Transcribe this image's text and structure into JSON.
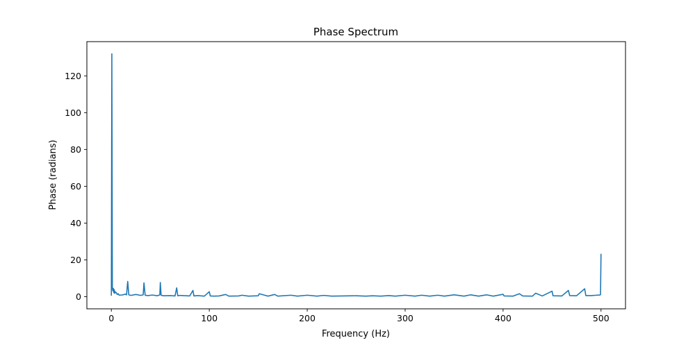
{
  "chart_data": {
    "type": "line",
    "title": "Phase Spectrum",
    "xlabel": "Frequency (Hz)",
    "ylabel": "Phase (radians)",
    "xlim": [
      -25,
      525
    ],
    "ylim": [
      -6.6,
      138.6
    ],
    "xticks": [
      0,
      100,
      200,
      300,
      400,
      500
    ],
    "yticks": [
      0,
      20,
      40,
      60,
      80,
      100,
      120
    ],
    "grid": false,
    "line_color": "#1f77b4",
    "series": [
      {
        "x": [
          0,
          0.5,
          1,
          1.5,
          2,
          2.5,
          3,
          3.5,
          4,
          5,
          6,
          7,
          8,
          10,
          12,
          14,
          15.5,
          16.7,
          17.8,
          20,
          25,
          30,
          32.5,
          33.3,
          34.5,
          37,
          42,
          47,
          49.5,
          50,
          50.8,
          53,
          60,
          65,
          66.7,
          67.8,
          70,
          80,
          83.3,
          84.3,
          88,
          95,
          100,
          101,
          105,
          110,
          116.7,
          120,
          130,
          133.3,
          140,
          150,
          151,
          160,
          166.7,
          170,
          183.3,
          190,
          200,
          210,
          216.7,
          225,
          250,
          260,
          266.7,
          275,
          283.3,
          290,
          300,
          310,
          316.7,
          325,
          333.3,
          340,
          350,
          360,
          366.7,
          375,
          383.3,
          390,
          400,
          401,
          410,
          416.7,
          420,
          430,
          433.3,
          440,
          450,
          451,
          460,
          466.7,
          468,
          475,
          483.3,
          484.5,
          490,
          495,
          499,
          499.5,
          500
        ],
        "y": [
          0.5,
          132,
          5,
          3.2,
          4.5,
          2.2,
          3.8,
          1.8,
          2.6,
          2.2,
          1.2,
          1.6,
          0.8,
          0.9,
          1.0,
          1.4,
          1.0,
          8.3,
          1.0,
          0.7,
          1.2,
          0.7,
          1.0,
          7.5,
          0.8,
          0.6,
          0.9,
          0.5,
          1.0,
          7.7,
          0.8,
          0.5,
          0.6,
          0.4,
          4.8,
          0.5,
          0.7,
          0.4,
          3.4,
          0.4,
          0.6,
          0.3,
          2.7,
          0.4,
          0.3,
          0.4,
          1.2,
          0.3,
          0.4,
          0.8,
          0.3,
          0.5,
          1.6,
          0.3,
          1.2,
          0.3,
          0.8,
          0.3,
          0.8,
          0.3,
          0.7,
          0.3,
          0.5,
          0.3,
          0.5,
          0.3,
          0.6,
          0.3,
          0.8,
          0.3,
          0.8,
          0.3,
          0.8,
          0.3,
          1.0,
          0.3,
          1.0,
          0.3,
          1.0,
          0.3,
          1.3,
          0.4,
          0.3,
          1.6,
          0.4,
          0.3,
          1.9,
          0.4,
          3.0,
          0.5,
          0.4,
          3.4,
          0.6,
          0.5,
          4.3,
          0.6,
          0.6,
          0.8,
          0.9,
          1.2,
          23.3
        ]
      }
    ]
  }
}
